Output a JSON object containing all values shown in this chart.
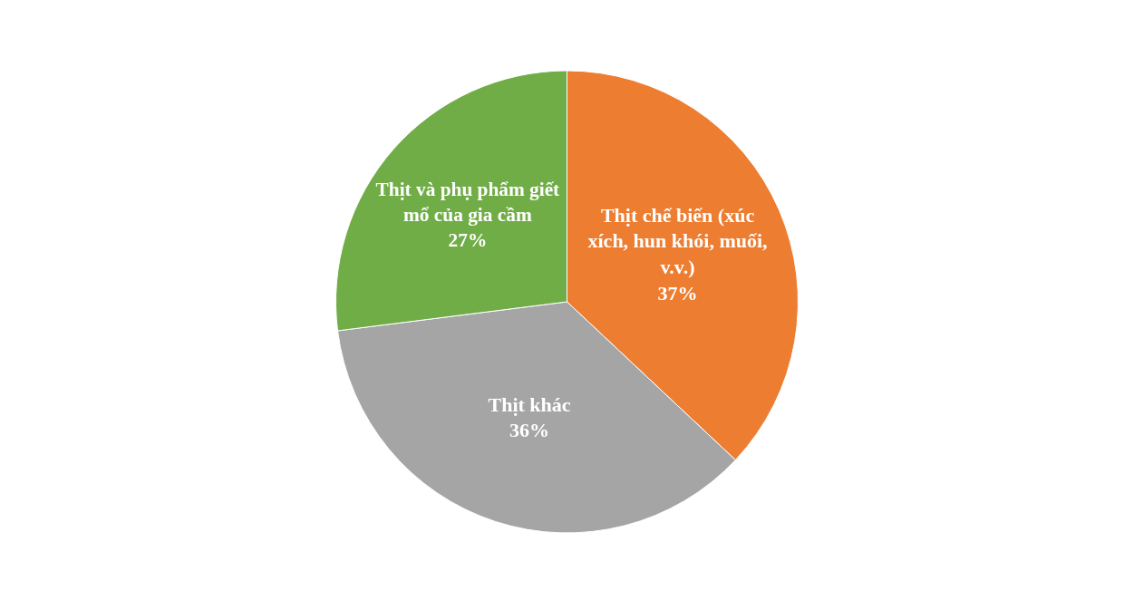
{
  "chart_data": {
    "type": "pie",
    "categories": [
      "Thịt chế biến (xúc xích, hun khói, muối, v.v.)",
      "Thịt khác",
      "Thịt và phụ phẩm giết mổ của gia cầm"
    ],
    "values": [
      37,
      36,
      27
    ],
    "value_labels": [
      "37%",
      "36%",
      "27%"
    ],
    "colors": [
      "#ed7d31",
      "#a5a5a5",
      "#70ad47"
    ]
  }
}
